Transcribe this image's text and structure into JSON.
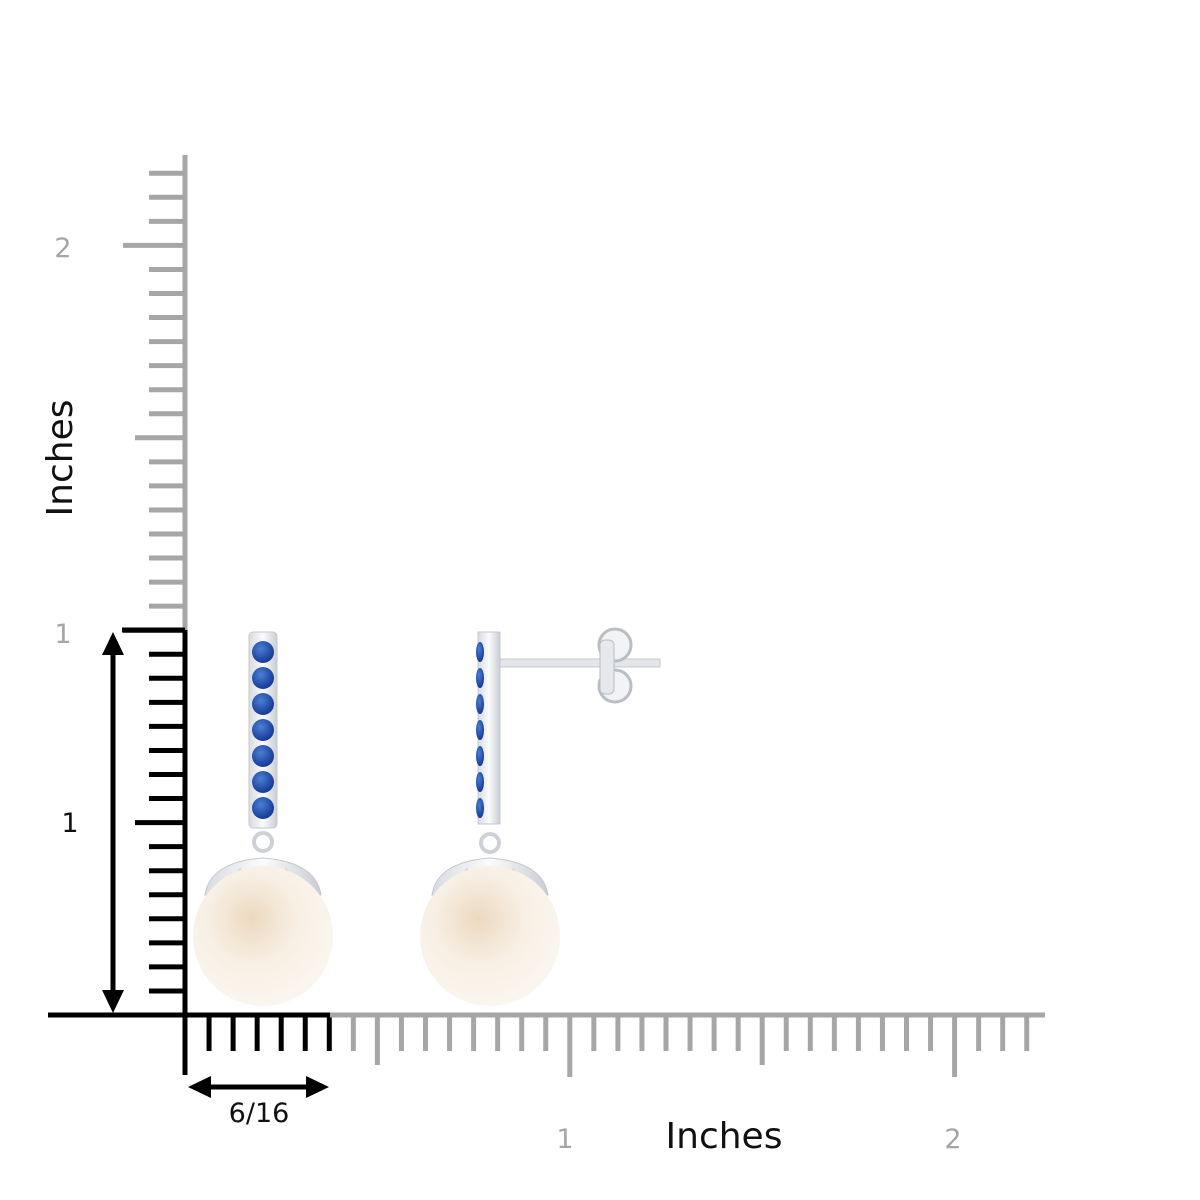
{
  "ruler": {
    "y_axis": {
      "title": "Inches",
      "labels": [
        "2",
        "1"
      ]
    },
    "x_axis": {
      "title": "Inches",
      "labels": [
        "1",
        "2"
      ]
    },
    "dimensions": {
      "height": "1",
      "width": "6/16"
    }
  }
}
